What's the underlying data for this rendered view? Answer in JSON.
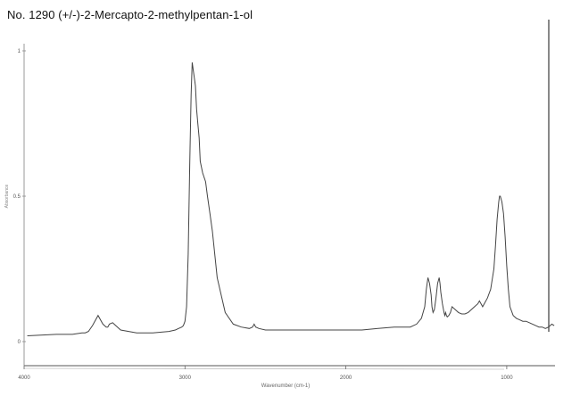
{
  "title": "No. 1290 (+/-)-2-Mercapto-2-methylpentan-1-ol",
  "chart_data": {
    "type": "line",
    "title": "No. 1290 (+/-)-2-Mercapto-2-methylpentan-1-ol",
    "xlabel": "Wavenumber (cm-1)",
    "ylabel": "Absorbance",
    "x_reversed": true,
    "xlim": [
      4000,
      700
    ],
    "ylim": [
      0,
      1
    ],
    "xticks": [
      {
        "value": 4000,
        "label": "4000"
      },
      {
        "value": 3000,
        "label": "3000"
      },
      {
        "value": 2000,
        "label": "2000"
      },
      {
        "value": 1000,
        "label": "1000"
      }
    ],
    "yticks": [
      {
        "value": 0,
        "label": "0"
      },
      {
        "value": 0.5,
        "label": "0.5"
      },
      {
        "value": 1,
        "label": "1"
      }
    ],
    "grid": false,
    "legend": "none",
    "line_color": "#444444",
    "series": [
      {
        "x": [
          3980,
          3800,
          3700,
          3640,
          3620,
          3600,
          3575,
          3540,
          3510,
          3490,
          3480,
          3470,
          3450,
          3400,
          3300,
          3200,
          3100,
          3060,
          3040,
          3020,
          3010,
          3000,
          2990,
          2980,
          2970,
          2962,
          2955,
          2945,
          2935,
          2928,
          2920,
          2912,
          2905,
          2890,
          2872,
          2860,
          2845,
          2830,
          2800,
          2750,
          2700,
          2650,
          2600,
          2580,
          2570,
          2560,
          2540,
          2500,
          2400,
          2300,
          2200,
          2100,
          2000,
          1900,
          1800,
          1700,
          1600,
          1560,
          1530,
          1510,
          1500,
          1490,
          1480,
          1470,
          1465,
          1458,
          1450,
          1440,
          1430,
          1420,
          1415,
          1410,
          1400,
          1390,
          1385,
          1380,
          1375,
          1370,
          1360,
          1350,
          1340,
          1320,
          1300,
          1280,
          1260,
          1240,
          1220,
          1200,
          1180,
          1170,
          1160,
          1150,
          1140,
          1120,
          1100,
          1080,
          1070,
          1060,
          1050,
          1045,
          1040,
          1030,
          1020,
          1010,
          1000,
          990,
          980,
          960,
          940,
          920,
          900,
          880,
          860,
          840,
          820,
          800,
          780,
          760,
          740,
          720,
          705
        ],
        "y": [
          0.02,
          0.025,
          0.025,
          0.03,
          0.03,
          0.035,
          0.055,
          0.09,
          0.06,
          0.05,
          0.05,
          0.06,
          0.065,
          0.04,
          0.03,
          0.03,
          0.035,
          0.04,
          0.045,
          0.05,
          0.055,
          0.07,
          0.12,
          0.3,
          0.62,
          0.85,
          0.96,
          0.92,
          0.88,
          0.8,
          0.75,
          0.7,
          0.62,
          0.58,
          0.55,
          0.5,
          0.44,
          0.38,
          0.22,
          0.1,
          0.06,
          0.05,
          0.045,
          0.05,
          0.06,
          0.05,
          0.045,
          0.04,
          0.04,
          0.04,
          0.04,
          0.04,
          0.04,
          0.04,
          0.045,
          0.05,
          0.05,
          0.06,
          0.08,
          0.12,
          0.18,
          0.22,
          0.2,
          0.16,
          0.12,
          0.1,
          0.11,
          0.15,
          0.2,
          0.22,
          0.2,
          0.17,
          0.13,
          0.1,
          0.09,
          0.1,
          0.09,
          0.085,
          0.09,
          0.1,
          0.12,
          0.11,
          0.1,
          0.095,
          0.095,
          0.1,
          0.11,
          0.12,
          0.13,
          0.14,
          0.13,
          0.12,
          0.13,
          0.15,
          0.18,
          0.25,
          0.33,
          0.42,
          0.48,
          0.5,
          0.5,
          0.48,
          0.44,
          0.36,
          0.26,
          0.18,
          0.12,
          0.09,
          0.08,
          0.075,
          0.07,
          0.07,
          0.065,
          0.06,
          0.055,
          0.05,
          0.05,
          0.045,
          0.05,
          0.06,
          0.055
        ]
      }
    ]
  }
}
